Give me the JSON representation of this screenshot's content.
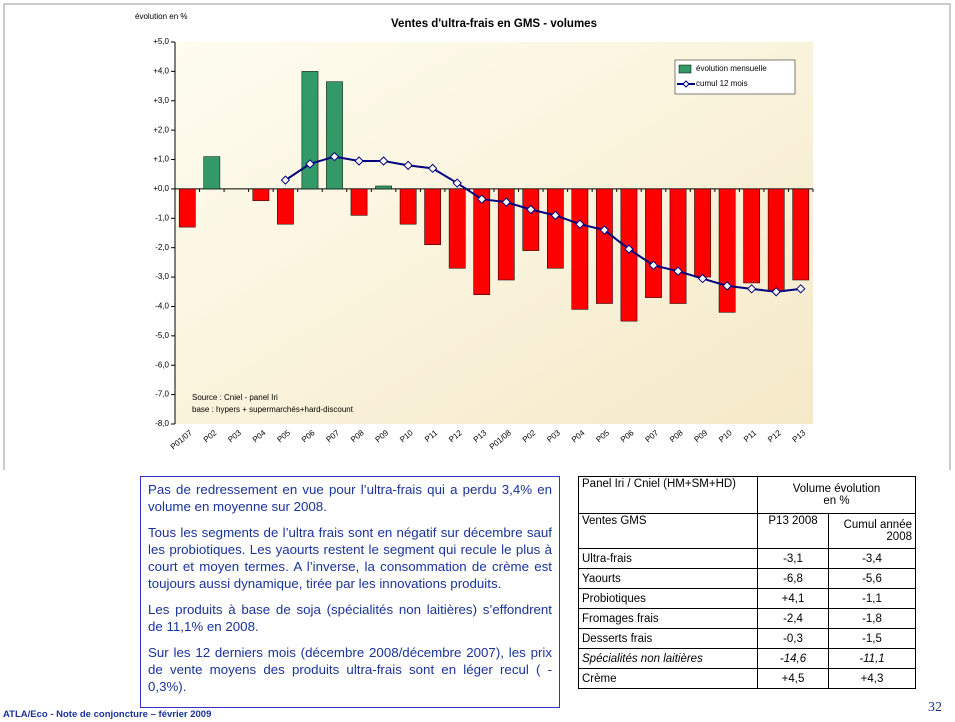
{
  "chart_data": {
    "type": "bar",
    "title": "Ventes d'ultra-frais en GMS - volumes",
    "ylabel": "évolution en %",
    "categories": [
      "P01/07",
      "P02",
      "P03",
      "P04",
      "P05",
      "P06",
      "P07",
      "P08",
      "P09",
      "P10",
      "P11",
      "P12",
      "P13",
      "P01/08",
      "P02",
      "P03",
      "P04",
      "P05",
      "P06",
      "P07",
      "P08",
      "P09",
      "P10",
      "P11",
      "P12",
      "P13"
    ],
    "series": [
      {
        "name": "évolution mensuelle",
        "type": "bar",
        "color": "#339966",
        "negative_color": "#ff0000",
        "values": [
          -1.3,
          1.1,
          0,
          -0.4,
          -1.2,
          4.0,
          3.65,
          -0.9,
          0.1,
          -1.2,
          -1.9,
          -2.7,
          -3.6,
          -3.1,
          -2.1,
          -2.7,
          -4.1,
          -3.9,
          -4.5,
          -3.7,
          -3.9,
          -3.0,
          -4.2,
          -3.2,
          -3.5,
          -3.1
        ]
      },
      {
        "name": "cumul 12 mois",
        "type": "line",
        "color": "#000080",
        "values": [
          null,
          null,
          null,
          null,
          0.3,
          0.85,
          1.1,
          0.95,
          0.95,
          0.8,
          0.7,
          0.2,
          -0.35,
          -0.45,
          -0.7,
          -0.9,
          -1.2,
          -1.4,
          -2.05,
          -2.6,
          -2.8,
          -3.05,
          -3.3,
          -3.4,
          -3.5,
          -3.4
        ]
      }
    ],
    "ylim": [
      -8,
      5
    ],
    "yticks": [
      {
        "value": 5,
        "label": "+5,0"
      },
      {
        "value": 4,
        "label": "+4,0"
      },
      {
        "value": 3,
        "label": "+3,0"
      },
      {
        "value": 2,
        "label": "+2,0"
      },
      {
        "value": 1,
        "label": "+1,0"
      },
      {
        "value": 0,
        "label": "+0,0"
      },
      {
        "value": -1,
        "label": "-1,0"
      },
      {
        "value": -2,
        "label": "-2,0"
      },
      {
        "value": -3,
        "label": "-3,0"
      },
      {
        "value": -4,
        "label": "-4,0"
      },
      {
        "value": -5,
        "label": "-5,0"
      },
      {
        "value": -6,
        "label": "-6,0"
      },
      {
        "value": -7,
        "label": "-7,0"
      },
      {
        "value": -8,
        "label": "-8,0"
      }
    ],
    "grid": false,
    "legend": "upper right",
    "annotations": [
      "Source : Cniel - panel Iri",
      "base : hypers + supermarchés+hard-discount"
    ]
  },
  "text": {
    "paragraphs": [
      "Pas de redressement en vue pour l’ultra-frais qui a perdu 3,4% en volume en moyenne sur 2008.",
      "Tous les segments de l’ultra frais sont en négatif sur décembre sauf les probiotiques. Les yaourts restent le segment qui recule le plus à court et moyen termes. A l’inverse, la consommation de crème est toujours aussi dynamique, tirée par les innovations produits.",
      "Les produits à base de soja (spécialités non laitières) s’effondrent de 11,1% en 2008.",
      "Sur les 12 derniers mois (décembre 2008/décembre 2007), les prix de vente moyens des produits ultra-frais sont en léger recul ( - 0,3%)."
    ]
  },
  "table": {
    "header": [
      "Panel Iri / Cniel (HM+SM+HD)",
      "Volume évolution en %"
    ],
    "subheader": [
      "Ventes GMS",
      "P13 2008",
      "Cumul année 2008"
    ],
    "rows": [
      [
        "Ultra-frais",
        "-3,1",
        "-3,4"
      ],
      [
        "Yaourts",
        "-6,8",
        "-5,6"
      ],
      [
        "Probiotiques",
        "+4,1",
        "-1,1"
      ],
      [
        "Fromages frais",
        "-2,4",
        "-1,8"
      ],
      [
        "Desserts frais",
        "-0,3",
        "-1,5"
      ],
      [
        "Spécialités non laitières",
        "-14,6",
        "-11,1"
      ],
      [
        "Crème",
        "+4,5",
        "+4,3"
      ]
    ]
  },
  "footer": {
    "source": "ATLA/Eco - Note de conjoncture –  février 2009",
    "page": "32"
  }
}
